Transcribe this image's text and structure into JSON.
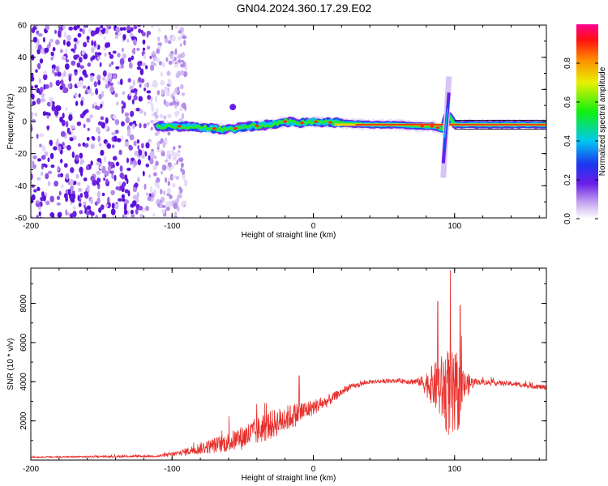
{
  "title": "GN04.2024.360.17.29.E02",
  "chart_data": [
    {
      "type": "heatmap",
      "xlabel": "Height of straight line (km)",
      "ylabel": "Frequency (Hz)",
      "xlim": [
        -200,
        165
      ],
      "ylim": [
        -60,
        60
      ],
      "x_ticks": [
        "-200",
        "-100",
        "0",
        "100"
      ],
      "x_tick_values": [
        -200,
        -100,
        0,
        100
      ],
      "y_ticks": [
        "60",
        "40",
        "20",
        "0",
        "-20",
        "-40",
        "-60"
      ],
      "y_tick_values": [
        60,
        40,
        20,
        0,
        -20,
        -40,
        -60
      ],
      "colorbar": {
        "label": "Normalized spectral amplitude",
        "range": [
          0,
          1
        ],
        "ticks": [
          "0.0",
          "0.2",
          "0.4",
          "0.6",
          "0.8"
        ],
        "tick_values": [
          0,
          0.2,
          0.4,
          0.6,
          0.8
        ]
      },
      "features": {
        "noise_region_x": [
          -200,
          -90
        ],
        "signal_track": [
          [
            -110,
            -3
          ],
          [
            -90,
            -3
          ],
          [
            -75,
            -4
          ],
          [
            -60,
            -5
          ],
          [
            -45,
            -3
          ],
          [
            -30,
            -2
          ],
          [
            -20,
            0
          ],
          [
            -10,
            -1
          ],
          [
            0,
            0
          ],
          [
            20,
            -1
          ],
          [
            40,
            -2
          ],
          [
            60,
            -2
          ],
          [
            75,
            -3
          ],
          [
            85,
            -3
          ],
          [
            92,
            -5
          ],
          [
            95,
            5
          ],
          [
            100,
            -2
          ],
          [
            165,
            -2
          ]
        ],
        "spike": {
          "x": 93,
          "y_range": [
            -35,
            28
          ]
        }
      }
    },
    {
      "type": "line",
      "xlabel": "Height of straight line (km)",
      "ylabel": "SNR (10 * v/v)",
      "xlim": [
        -200,
        165
      ],
      "ylim": [
        0,
        9800
      ],
      "x_ticks": [
        "-200",
        "-100",
        "0",
        "100"
      ],
      "x_tick_values": [
        -200,
        -100,
        0,
        100
      ],
      "y_ticks": [
        "2000",
        "4000",
        "6000",
        "8000"
      ],
      "y_tick_values": [
        2000,
        4000,
        6000,
        8000
      ],
      "color": "#e8302c",
      "envelope": [
        {
          "x": -200,
          "mean": 150,
          "noise": 60
        },
        {
          "x": -110,
          "mean": 200,
          "noise": 100
        },
        {
          "x": -95,
          "mean": 350,
          "noise": 300
        },
        {
          "x": -80,
          "mean": 600,
          "noise": 600
        },
        {
          "x": -60,
          "mean": 900,
          "noise": 1000
        },
        {
          "x": -45,
          "mean": 1300,
          "noise": 1400
        },
        {
          "x": -30,
          "mean": 1800,
          "noise": 1500
        },
        {
          "x": -10,
          "mean": 2400,
          "noise": 1200
        },
        {
          "x": 0,
          "mean": 2700,
          "noise": 800
        },
        {
          "x": 10,
          "mean": 3000,
          "noise": 600
        },
        {
          "x": 25,
          "mean": 3700,
          "noise": 300
        },
        {
          "x": 40,
          "mean": 4000,
          "noise": 200
        },
        {
          "x": 60,
          "mean": 4050,
          "noise": 200
        },
        {
          "x": 75,
          "mean": 4000,
          "noise": 400
        },
        {
          "x": 85,
          "mean": 3800,
          "noise": 2200
        },
        {
          "x": 95,
          "mean": 3500,
          "noise": 4500
        },
        {
          "x": 100,
          "mean": 3000,
          "noise": 5000
        },
        {
          "x": 107,
          "mean": 3800,
          "noise": 1500
        },
        {
          "x": 115,
          "mean": 4000,
          "noise": 300
        },
        {
          "x": 140,
          "mean": 3900,
          "noise": 250
        },
        {
          "x": 165,
          "mean": 3700,
          "noise": 250
        }
      ],
      "peaks": [
        {
          "x": 97,
          "y": 9700
        },
        {
          "x": 88,
          "y": 8100
        },
        {
          "x": 104,
          "y": 7900
        },
        {
          "x": -10,
          "y": 4300
        }
      ]
    }
  ]
}
